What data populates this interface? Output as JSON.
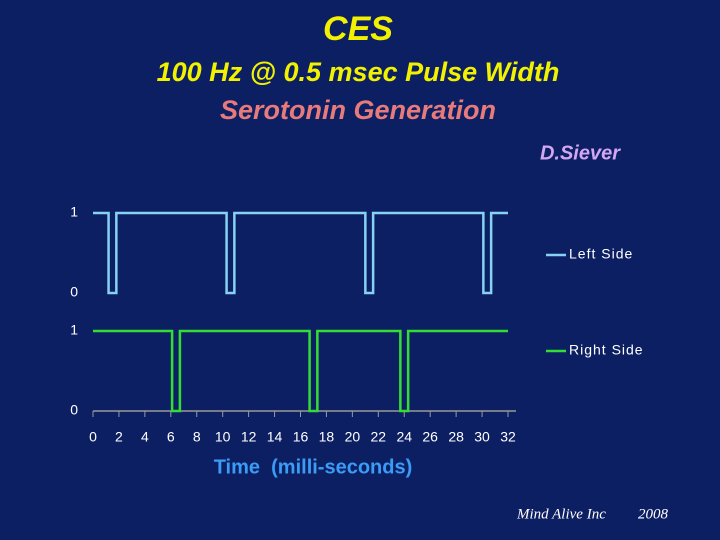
{
  "header": {
    "title": "CES",
    "subtitle": "100 Hz @ 0.5 msec Pulse Width",
    "subtitle2": "Serotonin Generation",
    "author": "D.Siever"
  },
  "footer": {
    "company": "Mind Alive Inc",
    "year": "2008"
  },
  "chart_data": [
    {
      "type": "line",
      "series": [
        {
          "name": "Left Side",
          "color": "#86d2f2",
          "x": [
            0,
            1.2,
            1.2,
            1.8,
            1.8,
            10.3,
            10.3,
            10.9,
            10.9,
            21.0,
            21.0,
            21.6,
            21.6,
            30.1,
            30.1,
            30.7,
            30.7,
            32
          ],
          "values": [
            1,
            1,
            0,
            0,
            1,
            1,
            0,
            0,
            1,
            1,
            0,
            0,
            1,
            1,
            0,
            0,
            1,
            1
          ]
        }
      ],
      "xlim": [
        0,
        32
      ],
      "ylim": [
        0,
        1
      ],
      "yticks": [
        0,
        1
      ]
    },
    {
      "type": "line",
      "series": [
        {
          "name": "Right Side",
          "color": "#33dd33",
          "x": [
            0,
            6.1,
            6.1,
            6.7,
            6.7,
            16.7,
            16.7,
            17.3,
            17.3,
            23.7,
            23.7,
            24.3,
            24.3,
            32
          ],
          "values": [
            1,
            1,
            0,
            0,
            1,
            1,
            0,
            0,
            1,
            1,
            0,
            0,
            1,
            1
          ]
        }
      ],
      "xlim": [
        0,
        32
      ],
      "ylim": [
        0,
        1
      ],
      "yticks": [
        0,
        1
      ],
      "xticks": [
        0,
        2,
        4,
        6,
        8,
        10,
        12,
        14,
        16,
        18,
        20,
        22,
        24,
        26,
        28,
        30,
        32
      ],
      "xlabel": "Time  (milli-seconds)"
    }
  ]
}
